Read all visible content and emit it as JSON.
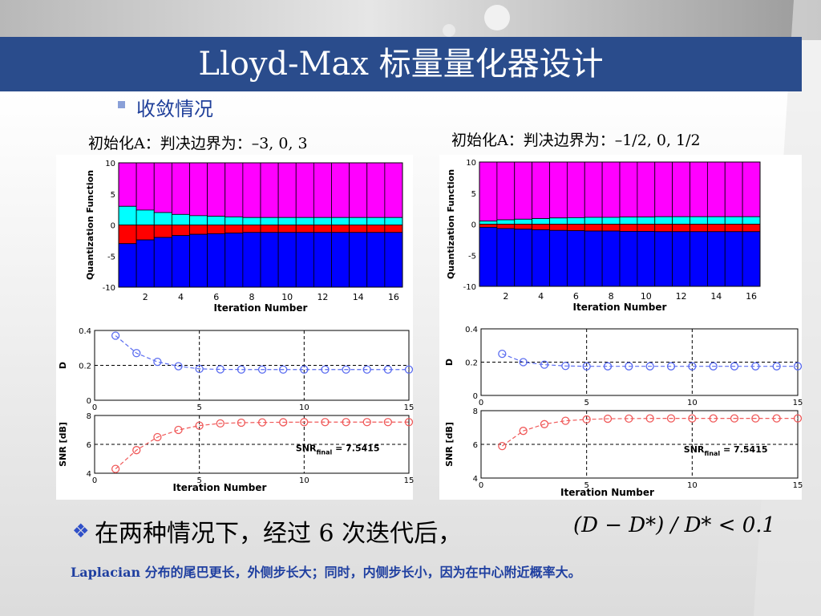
{
  "title": "Lloyd-Max 标量量化器设计",
  "bullet": "收敛情况",
  "init_a_left": "初始化A：判决边界为：–3, 0, 3",
  "init_a_right": "初始化A：判决边界为：–1/2, 0, 1/2",
  "conclusion": "在两种情况下，经过 6 次迭代后，",
  "formula": "(D − D*) / D* < 0.1",
  "note": "Laplacian 分布的尾巴更长，外侧步长大；同时，内侧步长小，因为在中心附近概率大。",
  "colors": {
    "magenta": "#ff00ff",
    "cyan": "#00ffff",
    "red": "#ff0000",
    "blue": "#0000ff",
    "title_bar": "#2a4c8c",
    "d_line": "#5a6cf0",
    "snr_line": "#f05a5a"
  },
  "chart_data": [
    {
      "type": "bar",
      "panel": "left-quantization",
      "ylabel": "Quantization Function",
      "xlabel": "Iteration Number",
      "ylim": [
        -10,
        10
      ],
      "yticks": [
        -10,
        -5,
        0,
        5,
        10
      ],
      "xticks": [
        2,
        4,
        6,
        8,
        10,
        12,
        14,
        16
      ],
      "categories": [
        1,
        2,
        3,
        4,
        5,
        6,
        7,
        8,
        9,
        10,
        11,
        12,
        13,
        14,
        15,
        16
      ],
      "boundaries": [
        [
          -3,
          0,
          3
        ],
        [
          -2.4,
          0,
          2.4
        ],
        [
          -2,
          0,
          2
        ],
        [
          -1.7,
          0,
          1.7
        ],
        [
          -1.5,
          0,
          1.5
        ],
        [
          -1.4,
          0,
          1.4
        ],
        [
          -1.3,
          0,
          1.3
        ],
        [
          -1.2,
          0,
          1.2
        ],
        [
          -1.2,
          0,
          1.2
        ],
        [
          -1.2,
          0,
          1.2
        ],
        [
          -1.2,
          0,
          1.2
        ],
        [
          -1.2,
          0,
          1.2
        ],
        [
          -1.2,
          0,
          1.2
        ],
        [
          -1.2,
          0,
          1.2
        ],
        [
          -1.2,
          0,
          1.2
        ],
        [
          -1.2,
          0,
          1.2
        ]
      ]
    },
    {
      "type": "bar",
      "panel": "right-quantization",
      "ylabel": "Quantization Function",
      "xlabel": "Iteration Number",
      "ylim": [
        -10,
        10
      ],
      "yticks": [
        -10,
        -5,
        0,
        5,
        10
      ],
      "xticks": [
        2,
        4,
        6,
        8,
        10,
        12,
        14,
        16
      ],
      "categories": [
        1,
        2,
        3,
        4,
        5,
        6,
        7,
        8,
        9,
        10,
        11,
        12,
        13,
        14,
        15,
        16
      ],
      "boundaries": [
        [
          -0.5,
          0,
          0.5
        ],
        [
          -0.7,
          0,
          0.7
        ],
        [
          -0.8,
          0,
          0.8
        ],
        [
          -0.9,
          0,
          0.9
        ],
        [
          -1,
          0,
          1
        ],
        [
          -1.05,
          0,
          1.05
        ],
        [
          -1.1,
          0,
          1.1
        ],
        [
          -1.1,
          0,
          1.1
        ],
        [
          -1.15,
          0,
          1.15
        ],
        [
          -1.15,
          0,
          1.15
        ],
        [
          -1.2,
          0,
          1.2
        ],
        [
          -1.2,
          0,
          1.2
        ],
        [
          -1.2,
          0,
          1.2
        ],
        [
          -1.2,
          0,
          1.2
        ],
        [
          -1.2,
          0,
          1.2
        ],
        [
          -1.2,
          0,
          1.2
        ]
      ]
    },
    {
      "type": "line",
      "panel": "left-D",
      "ylabel": "D",
      "xlim": [
        0,
        15
      ],
      "ylim": [
        0,
        0.4
      ],
      "yticks": [
        0,
        0.2,
        0.4
      ],
      "xticks": [
        0,
        5,
        10,
        15
      ],
      "grid_x": [
        5,
        10
      ],
      "ref_y": 0.2,
      "x": [
        1,
        2,
        3,
        4,
        5,
        6,
        7,
        8,
        9,
        10,
        11,
        12,
        13,
        14,
        15
      ],
      "values": [
        0.37,
        0.27,
        0.22,
        0.195,
        0.18,
        0.177,
        0.176,
        0.176,
        0.176,
        0.176,
        0.176,
        0.176,
        0.176,
        0.176,
        0.176
      ]
    },
    {
      "type": "line",
      "panel": "left-SNR",
      "ylabel": "SNR [dB]",
      "xlabel": "Iteration Number",
      "xlim": [
        0,
        15
      ],
      "ylim": [
        4,
        8
      ],
      "yticks": [
        4,
        6,
        8
      ],
      "xticks": [
        0,
        5,
        10,
        15
      ],
      "grid_x": [
        5,
        10
      ],
      "ref_y": 6,
      "x": [
        1,
        2,
        3,
        4,
        5,
        6,
        7,
        8,
        9,
        10,
        11,
        12,
        13,
        14,
        15
      ],
      "values": [
        4.3,
        5.6,
        6.5,
        7.0,
        7.3,
        7.45,
        7.5,
        7.52,
        7.53,
        7.54,
        7.54,
        7.54,
        7.54,
        7.54,
        7.54
      ],
      "annotation": {
        "main": "SNR",
        "sub": "final",
        "rest": " = 7.5415"
      }
    },
    {
      "type": "line",
      "panel": "right-D",
      "ylabel": "D",
      "xlim": [
        0,
        15
      ],
      "ylim": [
        0,
        0.4
      ],
      "yticks": [
        0,
        0.2,
        0.4
      ],
      "xticks": [
        0,
        5,
        10,
        15
      ],
      "grid_x": [
        5,
        10
      ],
      "ref_y": 0.2,
      "x": [
        1,
        2,
        3,
        4,
        5,
        6,
        7,
        8,
        9,
        10,
        11,
        12,
        13,
        14,
        15
      ],
      "values": [
        0.25,
        0.2,
        0.185,
        0.177,
        0.175,
        0.175,
        0.175,
        0.175,
        0.175,
        0.175,
        0.175,
        0.175,
        0.175,
        0.175,
        0.175
      ]
    },
    {
      "type": "line",
      "panel": "right-SNR",
      "ylabel": "SNR [dB]",
      "xlabel": "Iteration Number",
      "xlim": [
        0,
        15
      ],
      "ylim": [
        4,
        8
      ],
      "yticks": [
        4,
        6,
        8
      ],
      "xticks": [
        0,
        5,
        10,
        15
      ],
      "grid_x": [
        5,
        10
      ],
      "ref_y": 6,
      "x": [
        1,
        2,
        3,
        4,
        5,
        6,
        7,
        8,
        9,
        10,
        11,
        12,
        13,
        14,
        15
      ],
      "values": [
        5.9,
        6.8,
        7.2,
        7.4,
        7.48,
        7.52,
        7.53,
        7.54,
        7.54,
        7.54,
        7.54,
        7.54,
        7.54,
        7.54,
        7.54
      ],
      "annotation": {
        "main": "SNR",
        "sub": "final",
        "rest": " = 7.5415"
      }
    }
  ]
}
